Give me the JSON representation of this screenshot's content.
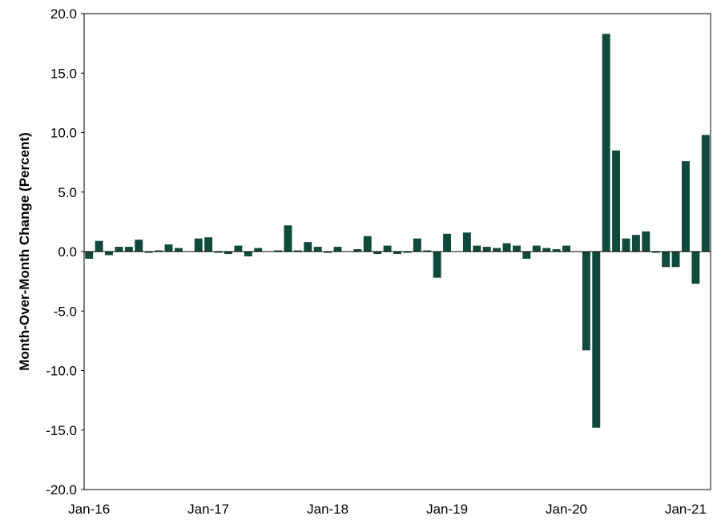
{
  "chart_data": {
    "type": "bar",
    "title": "",
    "xlabel": "",
    "ylabel": "Month-Over-Month Change (Percent)",
    "ylim": [
      -20,
      20
    ],
    "y_ticks": [
      "20.0",
      "15.0",
      "10.0",
      "5.0",
      "0.0",
      "-5.0",
      "-10.0",
      "-15.0",
      "-20.0"
    ],
    "x_tick_labels": [
      {
        "label": "Jan-16",
        "index": 0
      },
      {
        "label": "Jan-17",
        "index": 12
      },
      {
        "label": "Jan-18",
        "index": 24
      },
      {
        "label": "Jan-19",
        "index": 36
      },
      {
        "label": "Jan-20",
        "index": 48
      },
      {
        "label": "Jan-21",
        "index": 60
      }
    ],
    "grid": false,
    "legend": "none",
    "bar_color": "#0f4a3a",
    "categories": [
      "Jan-16",
      "Feb-16",
      "Mar-16",
      "Apr-16",
      "May-16",
      "Jun-16",
      "Jul-16",
      "Aug-16",
      "Sep-16",
      "Oct-16",
      "Nov-16",
      "Dec-16",
      "Jan-17",
      "Feb-17",
      "Mar-17",
      "Apr-17",
      "May-17",
      "Jun-17",
      "Jul-17",
      "Aug-17",
      "Sep-17",
      "Oct-17",
      "Nov-17",
      "Dec-17",
      "Jan-18",
      "Feb-18",
      "Mar-18",
      "Apr-18",
      "May-18",
      "Jun-18",
      "Jul-18",
      "Aug-18",
      "Sep-18",
      "Oct-18",
      "Nov-18",
      "Dec-18",
      "Jan-19",
      "Feb-19",
      "Mar-19",
      "Apr-19",
      "May-19",
      "Jun-19",
      "Jul-19",
      "Aug-19",
      "Sep-19",
      "Oct-19",
      "Nov-19",
      "Dec-19",
      "Jan-20",
      "Feb-20",
      "Mar-20",
      "Apr-20",
      "May-20",
      "Jun-20",
      "Jul-20",
      "Aug-20",
      "Sep-20",
      "Oct-20",
      "Nov-20",
      "Dec-20",
      "Jan-21",
      "Feb-21",
      "Mar-21"
    ],
    "values": [
      -0.6,
      0.9,
      -0.3,
      0.4,
      0.4,
      1.0,
      -0.1,
      0.1,
      0.6,
      0.3,
      0.0,
      1.1,
      1.2,
      -0.1,
      -0.2,
      0.5,
      -0.4,
      0.3,
      0.0,
      0.1,
      2.2,
      0.1,
      0.8,
      0.4,
      -0.1,
      0.4,
      0.0,
      0.2,
      1.3,
      -0.2,
      0.5,
      -0.2,
      -0.1,
      1.1,
      0.1,
      -2.2,
      1.5,
      0.0,
      1.6,
      0.5,
      0.4,
      0.3,
      0.7,
      0.5,
      -0.6,
      0.5,
      0.3,
      0.2,
      0.5,
      0.0,
      -8.3,
      -14.8,
      18.3,
      8.5,
      1.1,
      1.4,
      1.7,
      -0.1,
      -1.3,
      -1.3,
      7.6,
      -2.7,
      9.8
    ]
  }
}
